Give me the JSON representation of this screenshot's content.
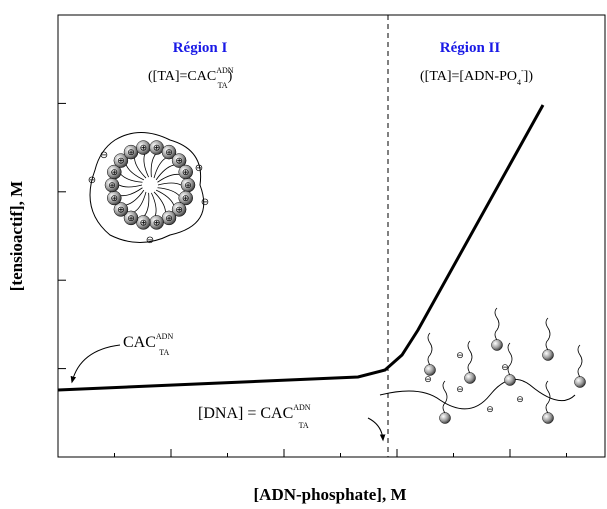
{
  "region1": {
    "title": "Région I",
    "formula": {
      "open": "([TA]=CAC",
      "sup": "ADN",
      "sub": "TA",
      "close": ")"
    }
  },
  "region2": {
    "title": "Région II",
    "formula": {
      "open": "([TA]=[ADN-PO",
      "sub": "4",
      "sup": "-",
      "close": "])"
    }
  },
  "cac_label": {
    "main": "CAC",
    "sup": "ADN",
    "sub": "TA"
  },
  "dna_label": {
    "main": "[DNA] = CAC",
    "sup": "ADN",
    "sub": "TA"
  },
  "x_axis_label": "[ADN-phosphate], M",
  "y_axis_label": "[tensioactif], M"
}
